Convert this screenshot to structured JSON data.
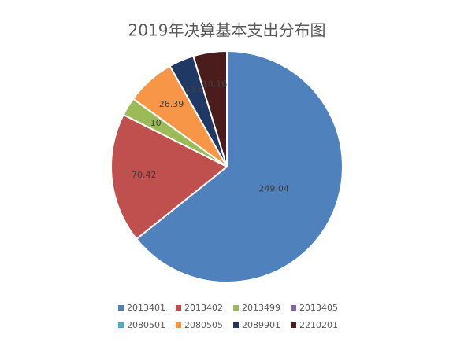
{
  "chart_data": {
    "type": "pie",
    "title": "2019年决算基本支出分布图",
    "categories": [
      "2013401",
      "2013402",
      "2013499",
      "2013405",
      "2080501",
      "2080505",
      "2089901",
      "2210201"
    ],
    "values": [
      249.04,
      70.42,
      10,
      0,
      0,
      26.39,
      13.6,
      18.16
    ],
    "colors": [
      "#4f81bd",
      "#c0504d",
      "#9bbb59",
      "#8064a2",
      "#4bacc6",
      "#f79646",
      "#1f3864",
      "#4a1c1c"
    ],
    "legend": "bottom"
  }
}
